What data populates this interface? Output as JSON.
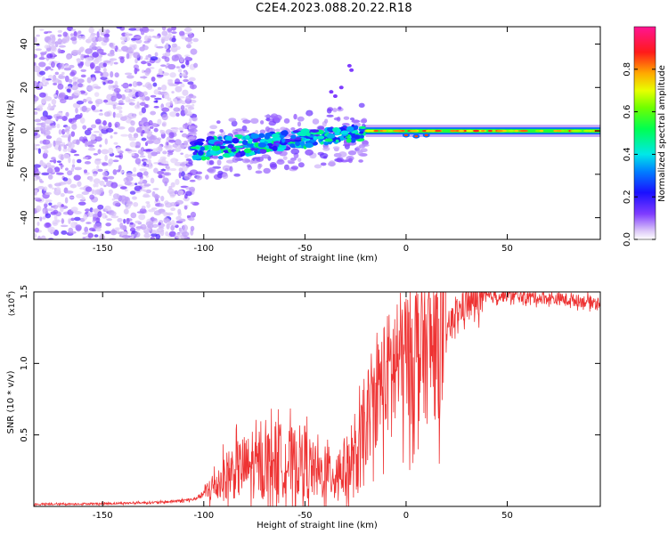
{
  "figure": {
    "title": "C2E4.2023.088.20.22.R18"
  },
  "chart_data": [
    {
      "type": "heatmap",
      "name": "spectrogram",
      "xlabel": "Height of straight line (km)",
      "ylabel": "Frequency (Hz)",
      "xlim": [
        -184,
        96
      ],
      "ylim": [
        -50,
        48
      ],
      "xticks": [
        "-150",
        "-100",
        "-50",
        "0",
        "50"
      ],
      "xtick_values": [
        -150,
        -100,
        -50,
        0,
        50
      ],
      "yticks": [
        "40",
        "20",
        "0",
        "-20",
        "-40"
      ],
      "ytick_values": [
        40,
        20,
        0,
        -20,
        -40
      ],
      "colorbar": {
        "label": "Normalized spectral amplitude",
        "range": [
          0,
          1
        ],
        "ticks": [
          "0.0",
          "0.2",
          "0.4",
          "0.6",
          "0.8"
        ],
        "tick_values": [
          0.0,
          0.2,
          0.4,
          0.6,
          0.8
        ]
      },
      "regions": [
        {
          "label": "scattered noise",
          "x_range": [
            -184,
            -105
          ],
          "freq_range": [
            -50,
            48
          ],
          "amplitude": 0.05
        },
        {
          "label": "signal band",
          "x_range": [
            -105,
            -20
          ],
          "freq_center": [
            -10,
            0
          ],
          "amplitude": 0.35
        },
        {
          "label": "spur",
          "x": -30,
          "freq": 28,
          "amplitude": 0.12
        },
        {
          "label": "narrow tone",
          "x_range": [
            -20,
            96
          ],
          "freq_center": 0,
          "amplitude": 0.9
        }
      ]
    },
    {
      "type": "line",
      "name": "snr",
      "xlabel": "Height of straight line (km)",
      "ylabel": "SNR (10 * v/v)",
      "scale_label": "(x10",
      "scale_exp": "4",
      "scale_close": ")",
      "color": "#ee3333",
      "xlim": [
        -184,
        96
      ],
      "ylim": [
        0,
        15000
      ],
      "xticks": [
        "-150",
        "-100",
        "-50",
        "0",
        "50"
      ],
      "xtick_values": [
        -150,
        -100,
        -50,
        0,
        50
      ],
      "yticks": [
        "1.5",
        "1.0",
        "0.5"
      ],
      "ytick_values": [
        15000,
        10000,
        5000
      ],
      "series": [
        {
          "name": "SNR",
          "x": [
            -184,
            -150,
            -120,
            -105,
            -100,
            -95,
            -90,
            -85,
            -80,
            -75,
            -70,
            -65,
            -60,
            -55,
            -50,
            -45,
            -40,
            -35,
            -30,
            -25,
            -20,
            -15,
            -10,
            -5,
            0,
            5,
            10,
            15,
            20,
            25,
            30,
            40,
            50,
            60,
            70,
            80,
            96
          ],
          "y": [
            150,
            200,
            300,
            500,
            900,
            1500,
            2200,
            2700,
            3000,
            2900,
            3200,
            3600,
            3400,
            3300,
            3500,
            2500,
            2400,
            2700,
            2900,
            3300,
            5500,
            8200,
            9500,
            10500,
            11000,
            11500,
            11400,
            11800,
            12500,
            13600,
            14300,
            14700,
            14800,
            14700,
            14600,
            14500,
            14300
          ]
        }
      ]
    }
  ]
}
